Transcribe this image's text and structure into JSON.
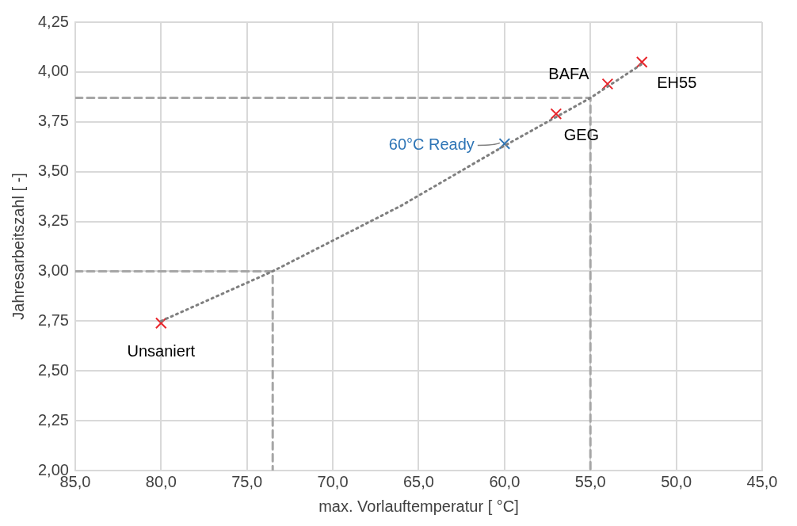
{
  "chart_data": {
    "type": "scatter",
    "xlabel": "max. Vorlauftemperatur [ °C]",
    "ylabel": "Jahresarbeitszahl [ -]",
    "xlim": [
      85,
      45
    ],
    "xticks": [
      {
        "value": 85,
        "label": "85,0"
      },
      {
        "value": 80,
        "label": "80,0"
      },
      {
        "value": 75,
        "label": "75,0"
      },
      {
        "value": 70,
        "label": "70,0"
      },
      {
        "value": 65,
        "label": "65,0"
      },
      {
        "value": 60,
        "label": "60,0"
      },
      {
        "value": 55,
        "label": "55,0"
      },
      {
        "value": 50,
        "label": "50,0"
      },
      {
        "value": 45,
        "label": "45,0"
      }
    ],
    "ylim": [
      2,
      4.25
    ],
    "yticks": [
      {
        "value": 2,
        "label": "2,00"
      },
      {
        "value": 2.25,
        "label": "2,25"
      },
      {
        "value": 2.5,
        "label": "2,50"
      },
      {
        "value": 2.75,
        "label": "2,75"
      },
      {
        "value": 3,
        "label": "3,00"
      },
      {
        "value": 3.25,
        "label": "3,25"
      },
      {
        "value": 3.5,
        "label": "3,50"
      },
      {
        "value": 3.75,
        "label": "3,75"
      },
      {
        "value": 4,
        "label": "4,00"
      },
      {
        "value": 4.25,
        "label": "4,25"
      }
    ],
    "grid": true,
    "legend": false,
    "series": [
      {
        "type": "line",
        "color": "#7f7f7f",
        "line_style": "dotted",
        "marker": "none",
        "x": [
          80,
          73.5,
          66,
          60,
          55,
          52
        ],
        "values": [
          2.75,
          3.0,
          3.33,
          3.63,
          3.87,
          4.04
        ]
      },
      {
        "type": "line",
        "color": "#a6a6a6",
        "line_style": "dashed",
        "marker": "none",
        "x": [
          85,
          73.5,
          73.5
        ],
        "values": [
          3.0,
          3.0,
          2.0
        ]
      },
      {
        "type": "line",
        "color": "#a6a6a6",
        "line_style": "dashed",
        "marker": "none",
        "x": [
          85,
          55,
          55
        ],
        "values": [
          3.87,
          3.87,
          2.0
        ]
      },
      {
        "color": "#e8242a",
        "marker": "cross",
        "x": [
          80,
          57,
          54,
          52
        ],
        "values": [
          2.74,
          3.79,
          3.94,
          4.05
        ]
      },
      {
        "color": "#2e75b6",
        "marker": "cross",
        "x": [
          60
        ],
        "values": [
          3.64
        ]
      }
    ],
    "annotations": [
      {
        "text": "Unsaniert",
        "x": 80,
        "y": 2.74
      },
      {
        "text": "GEG",
        "x": 57,
        "y": 3.79
      },
      {
        "text": "BAFA",
        "x": 54,
        "y": 3.94
      },
      {
        "text": "EH55",
        "x": 52,
        "y": 4.05
      },
      {
        "text": "60°C Ready",
        "x": 60,
        "y": 3.64
      }
    ]
  }
}
